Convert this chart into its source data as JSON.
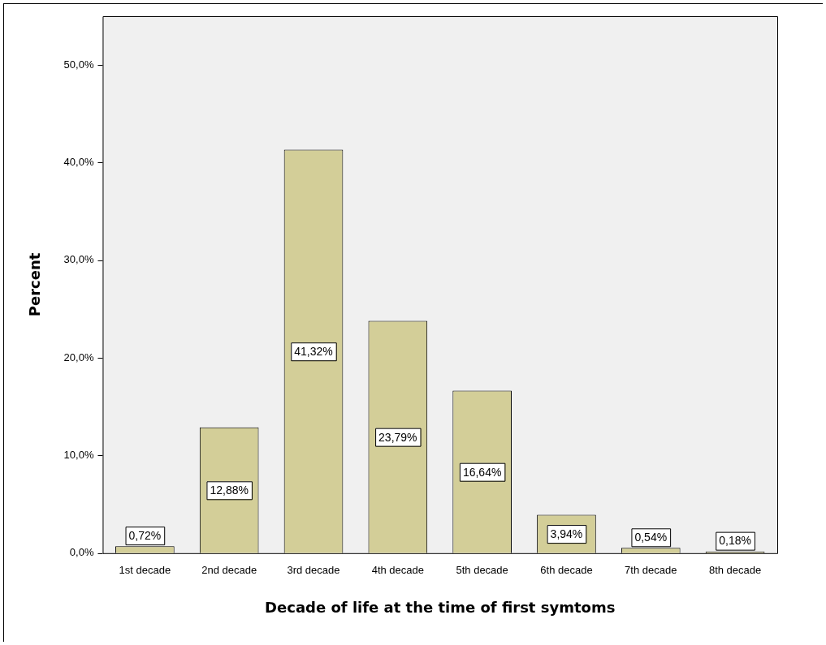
{
  "chart_data": {
    "type": "bar",
    "xlabel": "Decade of life at the time of first symtoms",
    "ylabel": "Percent",
    "categories": [
      "1st decade",
      "2nd decade",
      "3rd decade",
      "4th decade",
      "5th decade",
      "6th decade",
      "7th decade",
      "8th decade"
    ],
    "values": [
      0.72,
      12.88,
      41.32,
      23.79,
      16.64,
      3.94,
      0.54,
      0.18
    ],
    "value_labels": [
      "0,72%",
      "12,88%",
      "41,32%",
      "23,79%",
      "16,64%",
      "3,94%",
      "0,54%",
      "0,18%"
    ],
    "color": "#d3ce98",
    "ylim": [
      0,
      55
    ],
    "yticks": [
      {
        "value": 0,
        "label": "0,0%"
      },
      {
        "value": 10,
        "label": "10,0%"
      },
      {
        "value": 20,
        "label": "20,0%"
      },
      {
        "value": 30,
        "label": "30,0%"
      },
      {
        "value": 40,
        "label": "40,0%"
      },
      {
        "value": 50,
        "label": "50,0%"
      }
    ],
    "grid": false,
    "legend": false
  }
}
